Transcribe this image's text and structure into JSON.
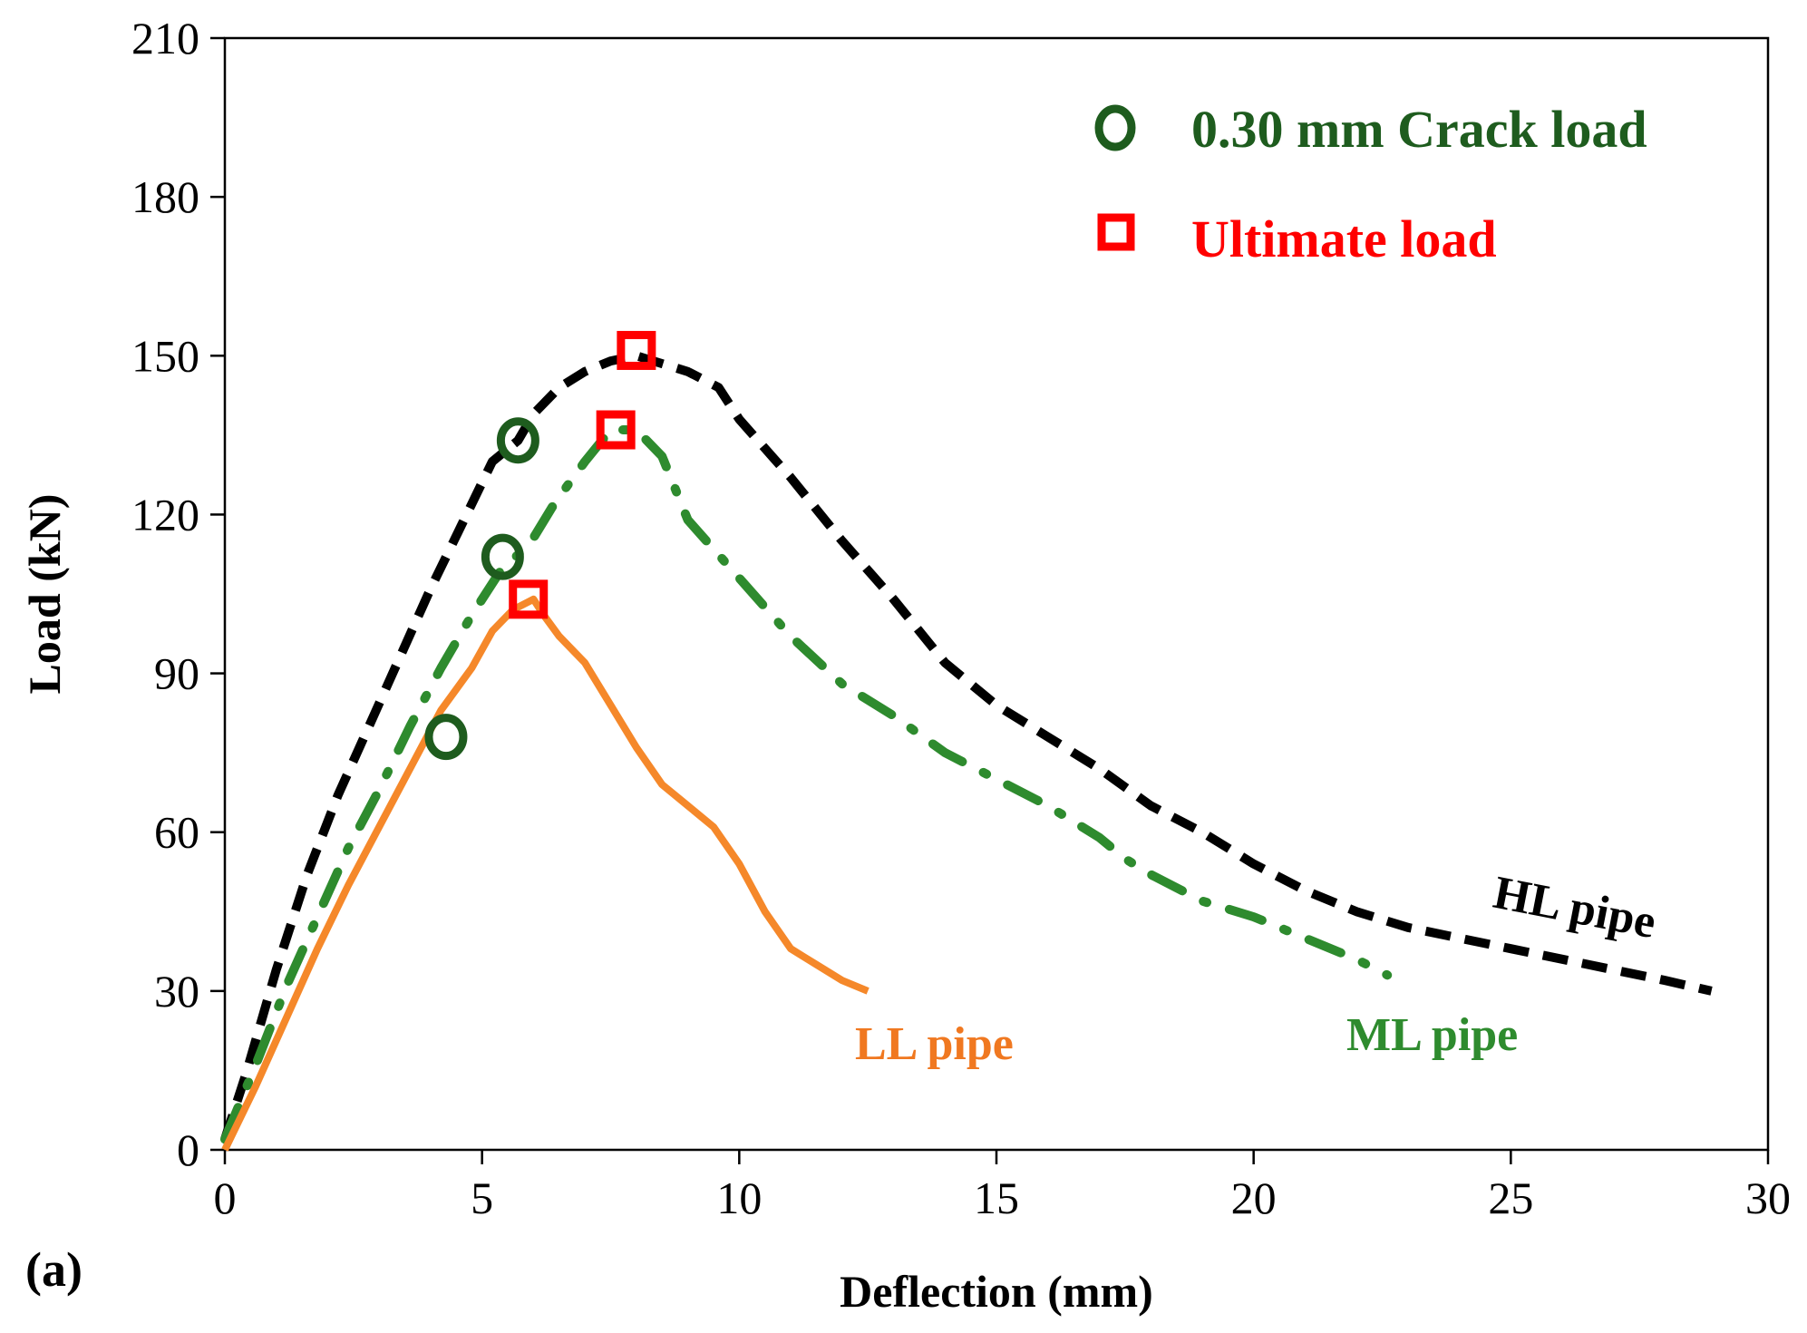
{
  "chart_data": {
    "type": "line",
    "xlabel": "Deflection (mm)",
    "ylabel": "Load (kN)",
    "panel_label": "(a)",
    "xlim": [
      0,
      30
    ],
    "ylim": [
      0,
      210
    ],
    "x_ticks": [
      "0",
      "5",
      "10",
      "15",
      "20",
      "25",
      "30"
    ],
    "y_ticks": [
      "0",
      "30",
      "60",
      "90",
      "120",
      "150",
      "180",
      "210"
    ],
    "grid": false,
    "legend_placement": "top-right",
    "legend": [
      {
        "label": "0.30 mm Crack load",
        "marker": "circle",
        "color": "#1e5c1e"
      },
      {
        "label": "Ultimate load",
        "marker": "square",
        "color": "#ff0000"
      }
    ],
    "series": [
      {
        "name": "HL pipe",
        "color": "#000000",
        "style": "dashed",
        "x": [
          0,
          0.4,
          1.0,
          1.6,
          2.2,
          2.8,
          3.4,
          4.0,
          4.6,
          5.2,
          5.7,
          6.0,
          6.5,
          7.0,
          7.5,
          8.0,
          9.0,
          9.6,
          10.0,
          11.0,
          12.0,
          13.0,
          14.0,
          15.0,
          16.0,
          17.0,
          18.0,
          19.0,
          20.0,
          21.0,
          22.0,
          23.0,
          24.0,
          25.0,
          26.0,
          27.0,
          28.0,
          28.9
        ],
        "y": [
          2,
          14,
          34,
          52,
          67,
          80,
          93,
          106,
          118,
          130,
          134,
          139,
          144,
          147,
          149,
          150,
          147,
          144,
          138,
          127,
          115,
          104,
          92,
          84,
          78,
          72,
          65,
          60,
          54,
          49,
          45,
          42,
          40,
          38,
          36,
          34,
          32,
          30
        ]
      },
      {
        "name": "ML pipe",
        "color": "#2e8b2e",
        "style": "dash-dot",
        "x": [
          0,
          0.6,
          1.2,
          1.8,
          2.4,
          3.0,
          3.6,
          4.2,
          4.8,
          5.4,
          5.9,
          6.4,
          7.0,
          7.5,
          8.0,
          8.5,
          9.0,
          10.0,
          11.0,
          12.0,
          13.0,
          14.0,
          15.0,
          16.0,
          17.0,
          17.5,
          18.0,
          19.0,
          20.0,
          21.0,
          22.0,
          22.6
        ],
        "y": [
          2,
          16,
          31,
          44,
          57,
          68,
          80,
          91,
          101,
          110,
          114,
          122,
          130,
          136,
          136,
          131,
          119,
          108,
          97,
          88,
          82,
          75,
          70,
          65,
          59,
          55,
          52,
          47,
          44,
          40,
          36,
          33
        ]
      },
      {
        "name": "LL pipe",
        "color": "#f5882a",
        "style": "solid",
        "x": [
          0,
          0.6,
          1.2,
          1.8,
          2.4,
          3.0,
          3.6,
          4.2,
          4.8,
          5.2,
          5.6,
          6.0,
          6.2,
          6.5,
          7.0,
          7.5,
          8.0,
          8.5,
          9.0,
          9.5,
          10.0,
          10.5,
          11.0,
          11.5,
          12.0,
          12.5
        ],
        "y": [
          0,
          12,
          25,
          38,
          50,
          61,
          72,
          83,
          91,
          98,
          102,
          104,
          101,
          97,
          92,
          84,
          76,
          69,
          65,
          61,
          54,
          45,
          38,
          35,
          32,
          30
        ]
      }
    ],
    "crack_load_points": [
      {
        "series": "HL pipe",
        "x": 5.7,
        "y": 134
      },
      {
        "series": "ML pipe",
        "x": 5.4,
        "y": 112
      },
      {
        "series": "LL pipe",
        "x": 4.3,
        "y": 78
      }
    ],
    "ultimate_load_points": [
      {
        "series": "HL pipe",
        "x": 8.0,
        "y": 151
      },
      {
        "series": "ML pipe",
        "x": 7.6,
        "y": 136
      },
      {
        "series": "LL pipe",
        "x": 5.9,
        "y": 104
      }
    ],
    "series_labels": [
      {
        "text": "HL pipe",
        "color": "#000000"
      },
      {
        "text": "ML pipe",
        "color": "#2e8b2e"
      },
      {
        "text": "LL pipe",
        "color": "#f07820"
      }
    ]
  }
}
